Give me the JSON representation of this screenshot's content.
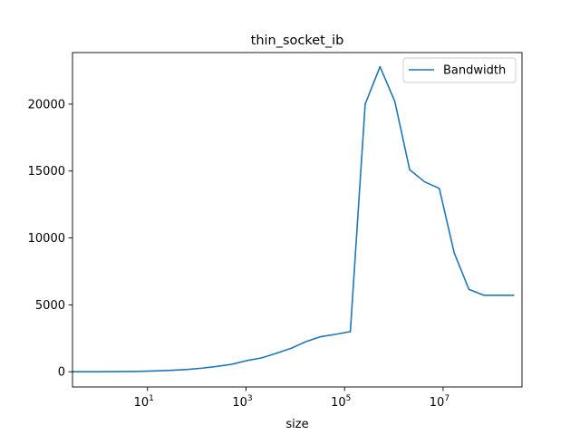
{
  "chart_data": {
    "type": "line",
    "title": "thin_socket_ib",
    "xlabel": "size",
    "ylabel": "",
    "xscale": "log",
    "xlim": [
      0.3,
      400000000
    ],
    "ylim": [
      -1136,
      23855
    ],
    "x_ticks": [
      {
        "value": 10,
        "base": "10",
        "exp": "1"
      },
      {
        "value": 1000,
        "base": "10",
        "exp": "3"
      },
      {
        "value": 100000,
        "base": "10",
        "exp": "5"
      },
      {
        "value": 10000000,
        "base": "10",
        "exp": "7"
      }
    ],
    "y_ticks": [
      {
        "value": 0,
        "label": "0"
      },
      {
        "value": 5000,
        "label": "5000"
      },
      {
        "value": 10000,
        "label": "10000"
      },
      {
        "value": 15000,
        "label": "15000"
      },
      {
        "value": 20000,
        "label": "20000"
      }
    ],
    "grid": false,
    "legend_position": "top-right",
    "series": [
      {
        "name": "Bandwidth",
        "color": "#1f77b4",
        "x": [
          0.3,
          1,
          2,
          4,
          8,
          16,
          32,
          64,
          128,
          256,
          512,
          1024,
          2048,
          4096,
          8192,
          16384,
          32768,
          65536,
          131072,
          262144,
          524288,
          1048576,
          2097152,
          4194304,
          8388608,
          16777216,
          33554432,
          67108864,
          134217728,
          268435456
        ],
        "values": [
          2,
          5,
          10,
          20,
          40,
          70,
          110,
          170,
          270,
          400,
          560,
          830,
          1030,
          1380,
          1750,
          2250,
          2620,
          2800,
          3000,
          20000,
          22800,
          20200,
          15100,
          14200,
          13700,
          8900,
          6150,
          5720,
          5720,
          5720
        ]
      }
    ]
  }
}
